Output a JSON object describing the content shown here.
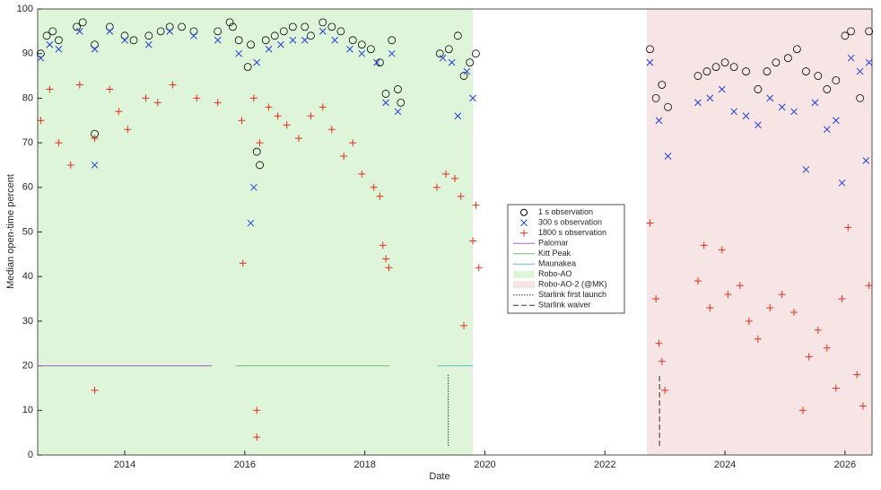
{
  "chart_data": {
    "type": "scatter",
    "xlabel": "Date",
    "ylabel": "Median open-time percent",
    "xlim": [
      2012.55,
      2026.45
    ],
    "xticks": [
      2014,
      2016,
      2018,
      2020,
      2022,
      2024,
      2026
    ],
    "ylim": [
      0,
      100
    ],
    "yticks": [
      0,
      10,
      20,
      30,
      40,
      50,
      60,
      70,
      80,
      90,
      100
    ],
    "legend": "center",
    "regions": [
      {
        "name": "Robo-AO",
        "color": "#dff5da",
        "x": [
          2012.55,
          2019.8
        ]
      },
      {
        "name": "Robo-AO-2 (@MK)",
        "color": "#f7e4e4",
        "x": [
          2022.7,
          2026.45
        ]
      }
    ],
    "series": [
      {
        "name": "1 s observation",
        "color": "#000000",
        "marker": "circle",
        "x": [
          2012.6,
          2012.7,
          2012.8,
          2012.9,
          2013.2,
          2013.3,
          2013.5,
          2013.5,
          2013.75,
          2014.0,
          2014.15,
          2014.4,
          2014.6,
          2014.75,
          2014.95,
          2015.15,
          2015.55,
          2015.75,
          2015.8,
          2015.9,
          2016.05,
          2016.1,
          2016.2,
          2016.25,
          2016.35,
          2016.5,
          2016.65,
          2016.8,
          2017.0,
          2017.1,
          2017.3,
          2017.45,
          2017.6,
          2017.8,
          2017.95,
          2018.1,
          2018.25,
          2018.35,
          2018.45,
          2018.55,
          2018.6,
          2019.25,
          2019.4,
          2019.55,
          2019.65,
          2019.75,
          2019.85,
          2022.75,
          2022.85,
          2022.95,
          2023.05,
          2023.55,
          2023.7,
          2023.85,
          2024.0,
          2024.15,
          2024.35,
          2024.55,
          2024.7,
          2024.85,
          2025.05,
          2025.2,
          2025.35,
          2025.55,
          2025.7,
          2025.85,
          2026.0,
          2026.1,
          2026.25,
          2026.4
        ],
        "values": [
          90,
          94,
          95,
          93,
          96,
          97,
          92,
          72,
          96,
          94,
          93,
          94,
          95,
          96,
          96,
          95,
          95,
          97,
          96,
          93,
          87,
          92,
          68,
          65,
          93,
          94,
          95,
          96,
          96,
          94,
          97,
          96,
          95,
          93,
          92,
          91,
          88,
          81,
          93,
          82,
          79,
          90,
          91,
          94,
          85,
          88,
          90,
          91,
          80,
          83,
          78,
          85,
          86,
          87,
          88,
          87,
          86,
          82,
          86,
          88,
          89,
          91,
          86,
          85,
          82,
          84,
          94,
          95,
          80,
          95
        ]
      },
      {
        "name": "300 s observation",
        "color": "#1f3fd6",
        "marker": "x",
        "x": [
          2012.6,
          2012.75,
          2012.9,
          2013.25,
          2013.5,
          2013.5,
          2013.75,
          2014.0,
          2014.4,
          2014.75,
          2015.15,
          2015.55,
          2015.9,
          2016.1,
          2016.15,
          2016.2,
          2016.4,
          2016.6,
          2016.8,
          2017.0,
          2017.3,
          2017.5,
          2017.75,
          2017.95,
          2018.2,
          2018.35,
          2018.45,
          2018.55,
          2019.3,
          2019.45,
          2019.55,
          2019.7,
          2019.8,
          2022.75,
          2022.9,
          2023.05,
          2023.55,
          2023.75,
          2023.95,
          2024.15,
          2024.35,
          2024.55,
          2024.75,
          2024.95,
          2025.15,
          2025.35,
          2025.5,
          2025.7,
          2025.85,
          2025.95,
          2026.1,
          2026.25,
          2026.35,
          2026.4
        ],
        "values": [
          89,
          92,
          91,
          95,
          91,
          65,
          95,
          93,
          92,
          95,
          94,
          93,
          90,
          52,
          60,
          88,
          91,
          92,
          93,
          93,
          95,
          93,
          91,
          90,
          88,
          79,
          90,
          77,
          89,
          88,
          76,
          86,
          80,
          88,
          75,
          67,
          79,
          80,
          82,
          77,
          76,
          74,
          80,
          78,
          77,
          64,
          79,
          73,
          75,
          61,
          89,
          86,
          66,
          88
        ]
      },
      {
        "name": "1800 s observation",
        "color": "#e0301e",
        "marker": "plus",
        "x": [
          2012.6,
          2012.75,
          2012.9,
          2013.1,
          2013.25,
          2013.5,
          2013.5,
          2013.75,
          2013.9,
          2014.05,
          2014.35,
          2014.55,
          2014.8,
          2015.2,
          2015.55,
          2015.95,
          2015.97,
          2016.15,
          2016.2,
          2016.2,
          2016.25,
          2016.4,
          2016.55,
          2016.7,
          2016.9,
          2017.1,
          2017.3,
          2017.45,
          2017.65,
          2017.8,
          2017.95,
          2018.15,
          2018.25,
          2018.3,
          2018.35,
          2018.4,
          2019.2,
          2019.35,
          2019.5,
          2019.6,
          2019.65,
          2019.8,
          2019.85,
          2019.9,
          2022.75,
          2022.85,
          2022.9,
          2022.95,
          2023.0,
          2023.55,
          2023.65,
          2023.75,
          2023.95,
          2024.05,
          2024.25,
          2024.4,
          2024.55,
          2024.75,
          2024.95,
          2025.15,
          2025.3,
          2025.4,
          2025.55,
          2025.7,
          2025.85,
          2025.95,
          2026.05,
          2026.2,
          2026.3,
          2026.4
        ],
        "values": [
          75,
          82,
          70,
          65,
          83,
          71,
          14.5,
          82,
          77,
          73,
          80,
          79,
          83,
          80,
          79,
          75,
          43,
          80,
          10,
          4,
          70,
          78,
          76,
          74,
          71,
          76,
          78,
          73,
          67,
          70,
          63,
          60,
          58,
          47,
          44,
          42,
          60,
          63,
          62,
          58,
          29,
          48,
          56,
          42,
          52,
          35,
          25,
          21,
          14.5,
          39,
          47,
          33,
          46,
          36,
          38,
          30,
          26,
          33,
          36,
          32,
          10,
          22,
          28,
          24,
          15,
          35,
          51,
          18,
          11,
          38
        ]
      }
    ],
    "reference_lines": [
      {
        "name": "Palomar",
        "color": "#a060c0",
        "x": [
          2012.55,
          2015.45
        ],
        "values": [
          20,
          20
        ]
      },
      {
        "name": "Kitt Peak",
        "color": "#70c070",
        "x": [
          2015.85,
          2018.42
        ],
        "values": [
          20,
          20
        ]
      },
      {
        "name": "Maunakea",
        "color": "#60c0c8",
        "x": [
          2019.21,
          2019.8
        ],
        "values": [
          20,
          20
        ]
      }
    ],
    "vlines": [
      {
        "name": "Starlink first launch",
        "style": "dotted",
        "x": 2019.39,
        "y": [
          2,
          18
        ]
      },
      {
        "name": "Starlink waiver",
        "style": "dashed",
        "x": 2022.91,
        "y": [
          2,
          18
        ]
      }
    ]
  }
}
